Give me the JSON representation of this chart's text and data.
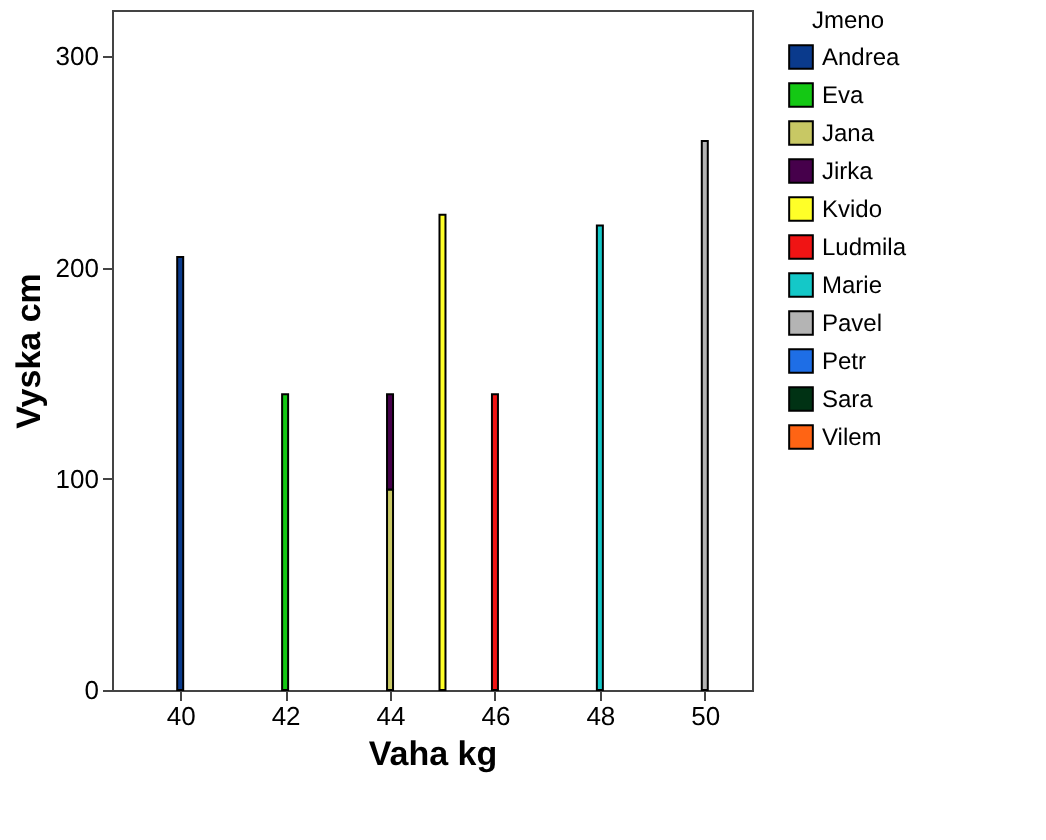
{
  "chart_data": {
    "type": "bar",
    "stacked": true,
    "xlabel": "Vaha kg",
    "ylabel": "Vyska cm",
    "legend_title": "Jmeno",
    "legend": "top right",
    "grid": false,
    "x": [
      40,
      42,
      44,
      45,
      46,
      48,
      50
    ],
    "xlim": [
      38.7,
      50.9
    ],
    "xticks": [
      40,
      42,
      44,
      46,
      48,
      50
    ],
    "ylim": [
      0,
      322
    ],
    "yticks": [
      0,
      100,
      200,
      300
    ],
    "series": [
      {
        "name": "Andrea",
        "color": "#0a3a8c",
        "values": [
          205,
          null,
          null,
          null,
          null,
          null,
          null
        ]
      },
      {
        "name": "Eva",
        "color": "#14c814",
        "values": [
          null,
          140,
          null,
          null,
          null,
          null,
          null
        ]
      },
      {
        "name": "Jana",
        "color": "#c8c864",
        "values": [
          null,
          null,
          95,
          null,
          null,
          null,
          null
        ]
      },
      {
        "name": "Jirka",
        "color": "#46004b",
        "values": [
          null,
          null,
          45,
          null,
          null,
          null,
          null
        ]
      },
      {
        "name": "Kvido",
        "color": "#ffff28",
        "values": [
          null,
          null,
          null,
          225,
          null,
          null,
          null
        ]
      },
      {
        "name": "Ludmila",
        "color": "#f01414",
        "values": [
          null,
          null,
          null,
          null,
          140,
          null,
          null
        ]
      },
      {
        "name": "Marie",
        "color": "#14c8c8",
        "values": [
          null,
          null,
          null,
          null,
          null,
          220,
          null
        ]
      },
      {
        "name": "Pavel",
        "color": "#b4b4b4",
        "values": [
          null,
          null,
          null,
          null,
          null,
          null,
          260
        ]
      },
      {
        "name": "Petr",
        "color": "#1e6ee6",
        "values": [
          null,
          null,
          null,
          null,
          null,
          null,
          null
        ]
      },
      {
        "name": "Sara",
        "color": "#003214",
        "values": [
          null,
          null,
          null,
          null,
          null,
          null,
          null
        ]
      },
      {
        "name": "Vilem",
        "color": "#ff6414",
        "values": [
          null,
          null,
          null,
          null,
          null,
          null,
          null
        ]
      }
    ]
  }
}
